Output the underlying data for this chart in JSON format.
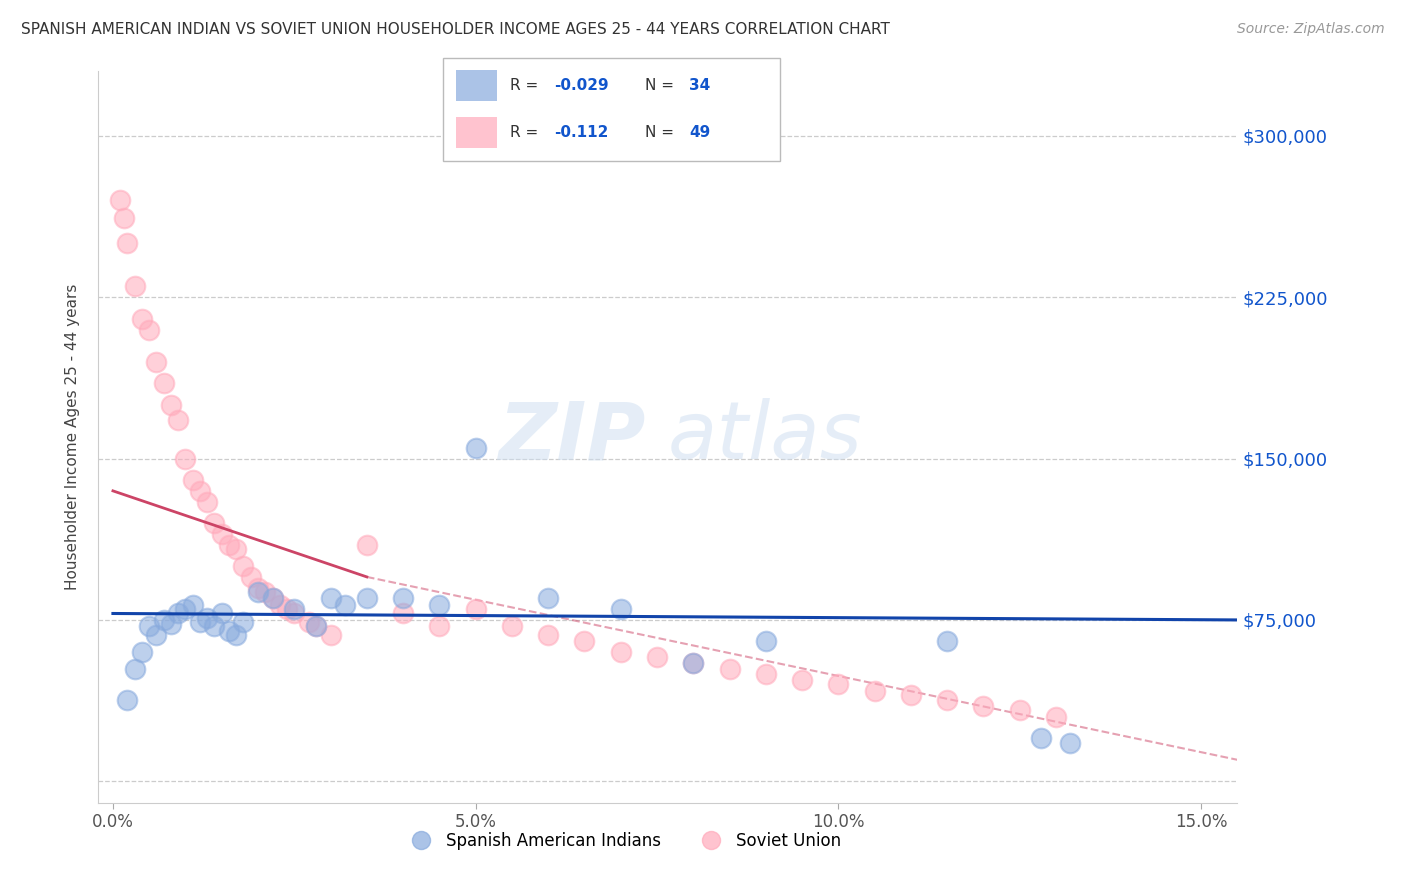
{
  "title": "SPANISH AMERICAN INDIAN VS SOVIET UNION HOUSEHOLDER INCOME AGES 25 - 44 YEARS CORRELATION CHART",
  "source": "Source: ZipAtlas.com",
  "ylabel": "Householder Income Ages 25 - 44 years",
  "xlabel_vals": [
    0.0,
    5.0,
    10.0,
    15.0
  ],
  "xlim": [
    -0.2,
    15.5
  ],
  "ylim": [
    -10000,
    330000
  ],
  "yticks": [
    0,
    75000,
    150000,
    225000,
    300000
  ],
  "ytick_labels": [
    "",
    "$75,000",
    "$150,000",
    "$225,000",
    "$300,000"
  ],
  "grid_color": "#cccccc",
  "watermark_zip": "ZIP",
  "watermark_atlas": "atlas",
  "blue_color": "#88aadd",
  "pink_color": "#ffaabb",
  "trend_blue_color": "#1144aa",
  "trend_pink_color": "#cc4466",
  "blue_scatter_x": [
    0.2,
    0.3,
    0.4,
    0.5,
    0.6,
    0.7,
    0.8,
    0.9,
    1.0,
    1.1,
    1.2,
    1.3,
    1.4,
    1.5,
    1.6,
    1.7,
    1.8,
    2.0,
    2.2,
    2.5,
    2.8,
    3.0,
    3.2,
    3.5,
    4.0,
    4.5,
    5.0,
    6.0,
    7.0,
    8.0,
    9.0,
    11.5,
    12.8,
    13.2
  ],
  "blue_scatter_y": [
    38000,
    52000,
    60000,
    72000,
    68000,
    75000,
    73000,
    78000,
    80000,
    82000,
    74000,
    76000,
    72000,
    78000,
    70000,
    68000,
    74000,
    88000,
    85000,
    80000,
    72000,
    85000,
    82000,
    85000,
    85000,
    82000,
    155000,
    85000,
    80000,
    55000,
    65000,
    65000,
    20000,
    18000
  ],
  "pink_scatter_x": [
    0.1,
    0.15,
    0.2,
    0.3,
    0.4,
    0.5,
    0.6,
    0.7,
    0.8,
    0.9,
    1.0,
    1.1,
    1.2,
    1.3,
    1.4,
    1.5,
    1.6,
    1.7,
    1.8,
    1.9,
    2.0,
    2.1,
    2.2,
    2.3,
    2.4,
    2.5,
    2.7,
    2.8,
    3.0,
    3.5,
    4.0,
    4.5,
    5.0,
    5.5,
    6.0,
    6.5,
    7.0,
    7.5,
    8.0,
    8.5,
    9.0,
    9.5,
    10.0,
    10.5,
    11.0,
    11.5,
    12.0,
    12.5,
    13.0
  ],
  "pink_scatter_y": [
    270000,
    262000,
    250000,
    230000,
    215000,
    210000,
    195000,
    185000,
    175000,
    168000,
    150000,
    140000,
    135000,
    130000,
    120000,
    115000,
    110000,
    108000,
    100000,
    95000,
    90000,
    88000,
    85000,
    82000,
    80000,
    78000,
    74000,
    72000,
    68000,
    110000,
    78000,
    72000,
    80000,
    72000,
    68000,
    65000,
    60000,
    58000,
    55000,
    52000,
    50000,
    47000,
    45000,
    42000,
    40000,
    38000,
    35000,
    33000,
    30000
  ],
  "blue_trend_x0": 0.0,
  "blue_trend_x1": 15.5,
  "blue_trend_y0": 78000,
  "blue_trend_y1": 75000,
  "pink_solid_x0": 0.0,
  "pink_solid_x1": 3.5,
  "pink_solid_y0": 135000,
  "pink_solid_y1": 95000,
  "pink_dash_x0": 3.5,
  "pink_dash_x1": 15.5,
  "pink_dash_y0": 95000,
  "pink_dash_y1": 10000
}
